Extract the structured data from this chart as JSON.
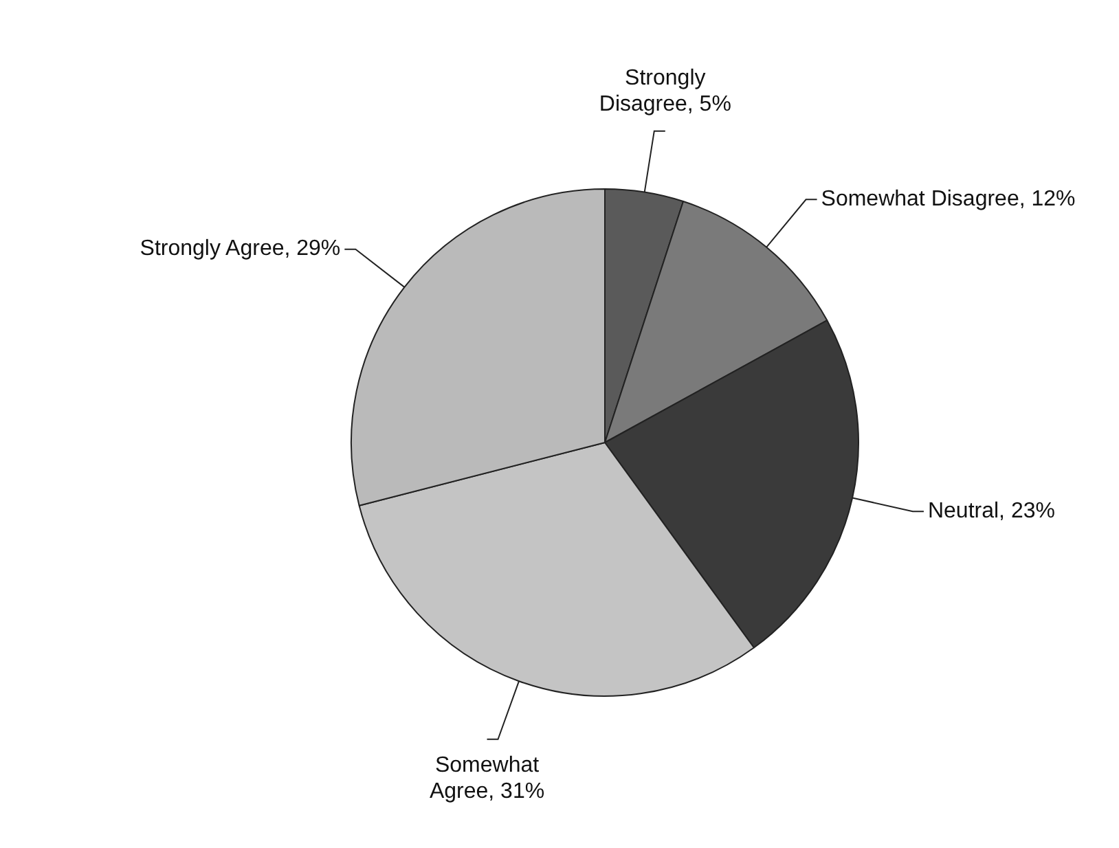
{
  "chart_data": {
    "type": "pie",
    "categories": [
      "Strongly Disagree",
      "Somewhat Disagree",
      "Neutral",
      "Somewhat Agree",
      "Strongly Agree"
    ],
    "values": [
      5,
      12,
      23,
      31,
      29
    ],
    "value_labels": [
      "5%",
      "12%",
      "23%",
      "31%",
      "29%"
    ],
    "colors": [
      "#5a5a5a",
      "#7a7a7a",
      "#3a3a3a",
      "#c4c4c4",
      "#bababa"
    ],
    "legend": false
  }
}
